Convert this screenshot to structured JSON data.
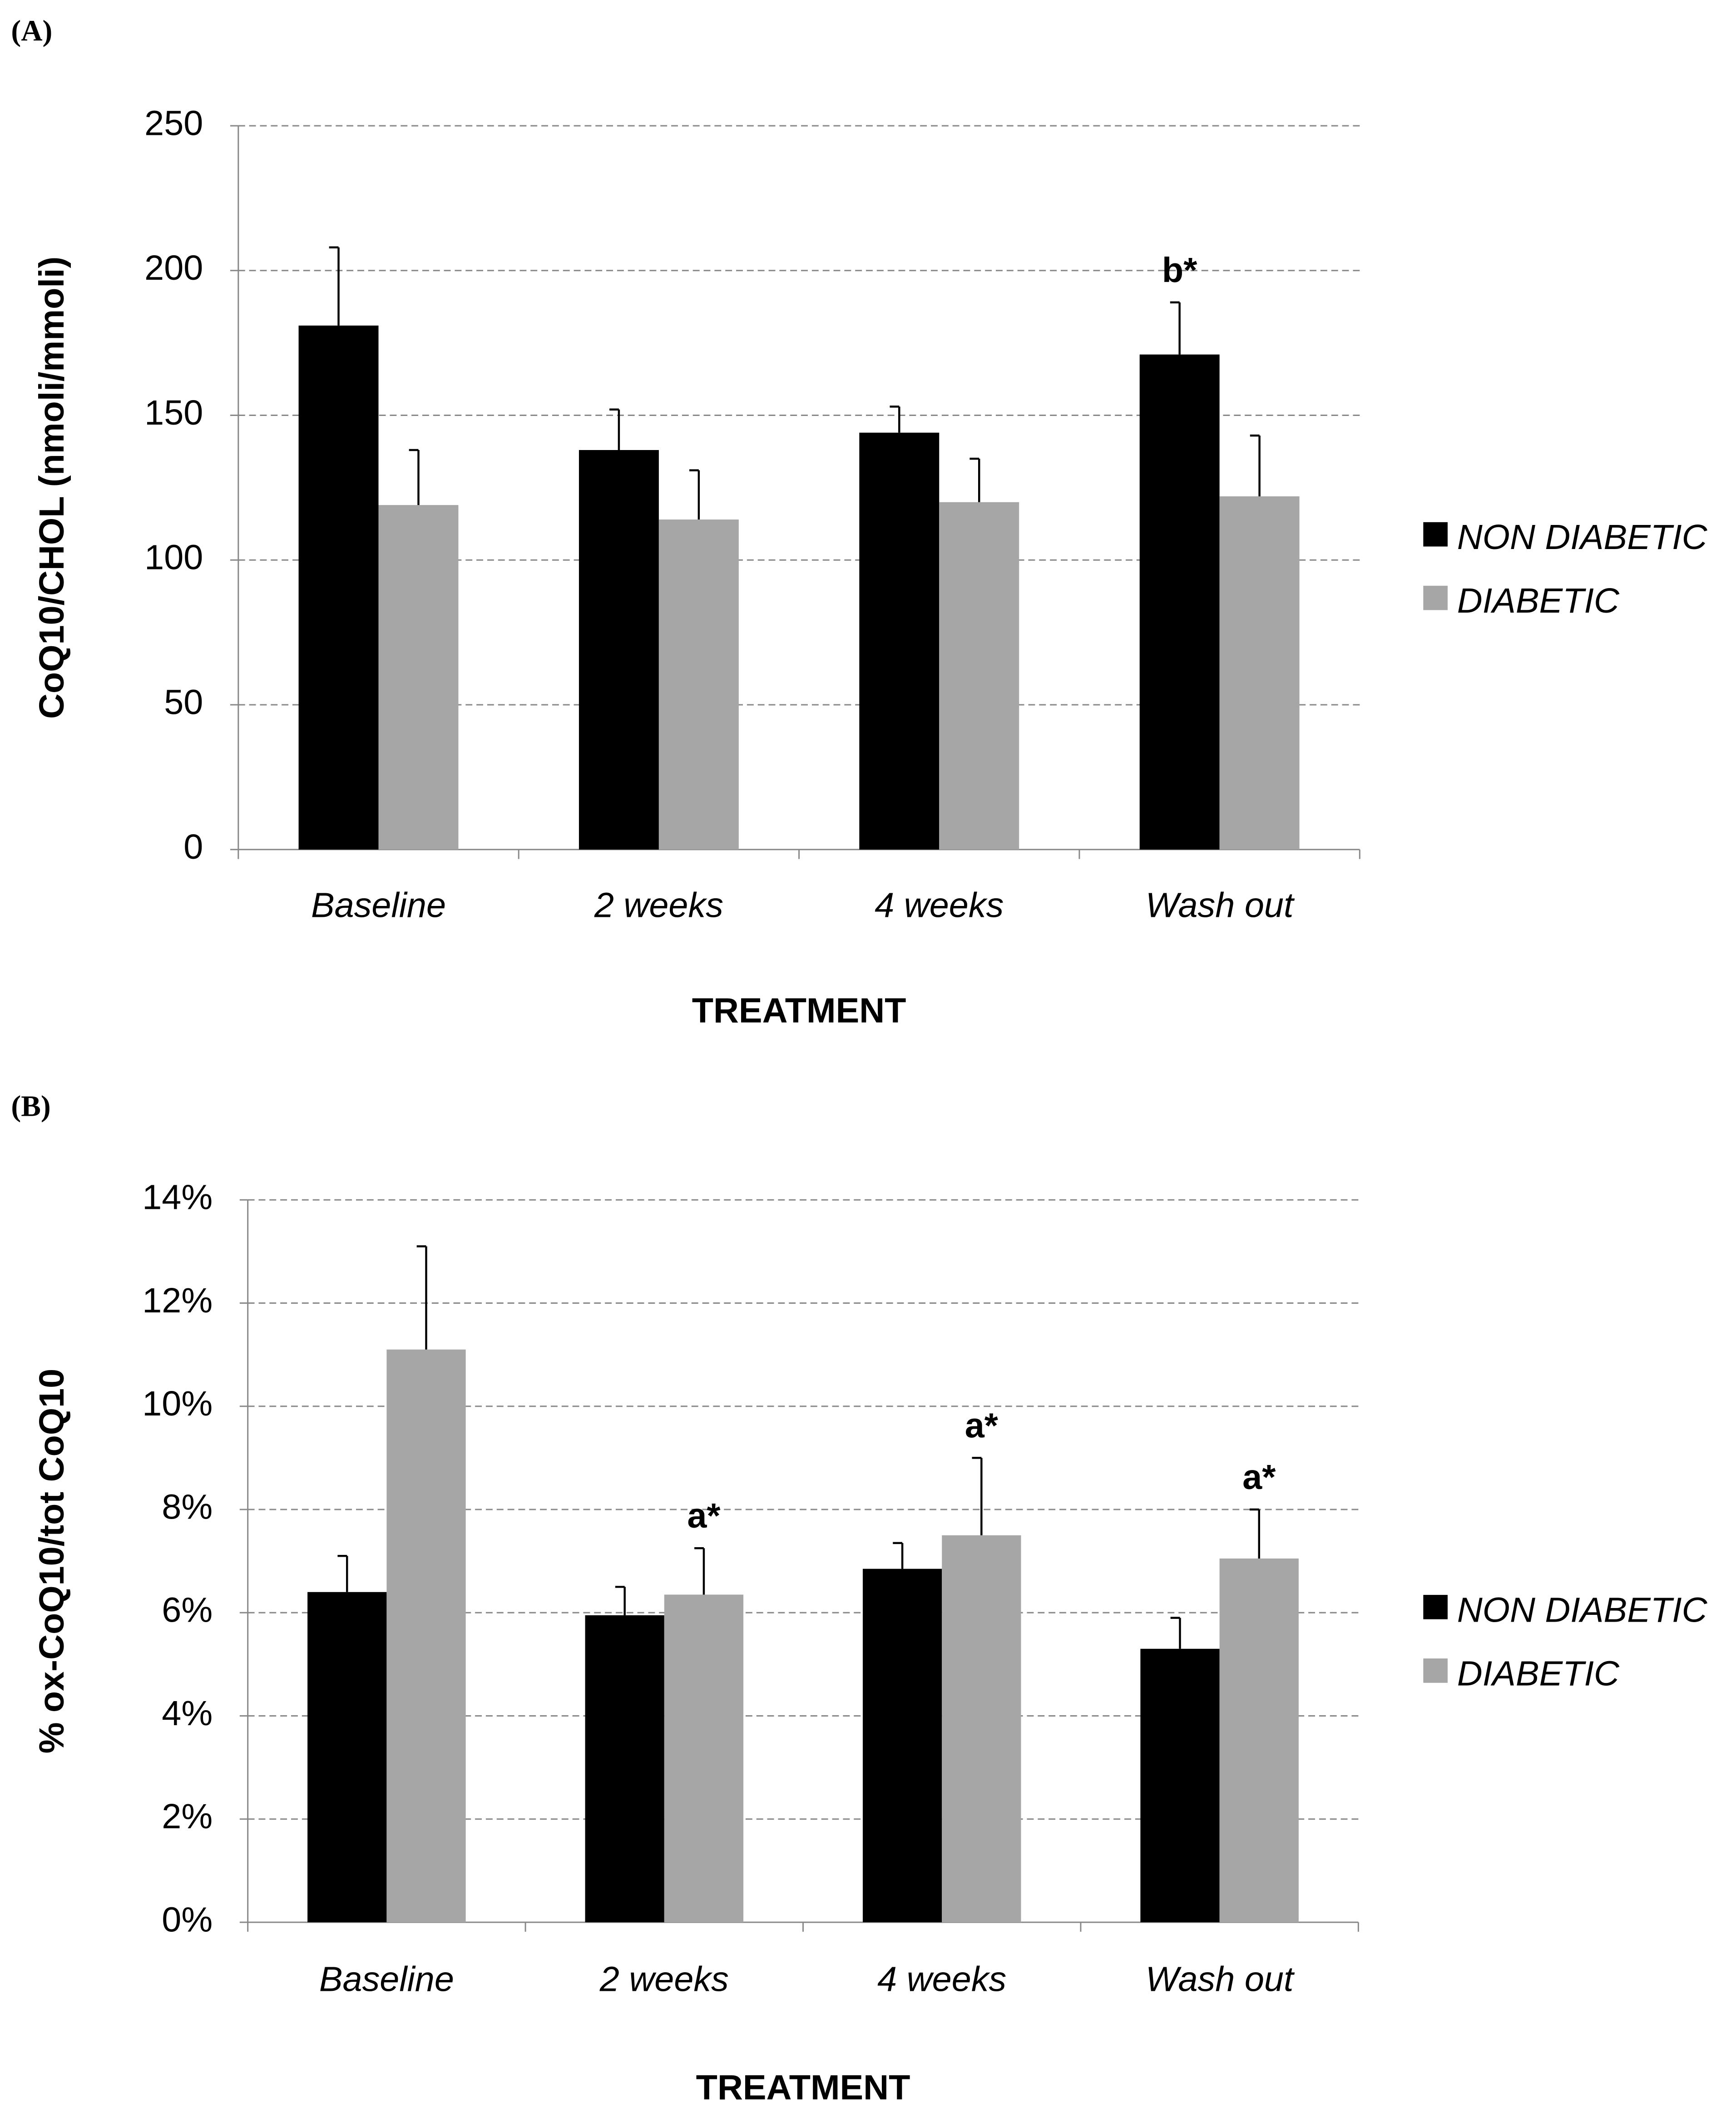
{
  "chart_data": [
    {
      "type": "bar",
      "panel_label": "(A)",
      "y_label": "CoQ10/CHOL (nmoli/mmoli)",
      "x_label": "TREATMENT",
      "categories": [
        "Baseline",
        "2 weeks",
        "4 weeks",
        "Wash out"
      ],
      "series": [
        {
          "name": "NON DIABETIC",
          "color": "#000000",
          "values": [
            181,
            138,
            144,
            171
          ],
          "errors": [
            27,
            14,
            9,
            18
          ],
          "annotations": [
            null,
            null,
            null,
            "b*"
          ]
        },
        {
          "name": "DIABETIC",
          "color": "#a6a6a6",
          "values": [
            119,
            114,
            120,
            122
          ],
          "errors": [
            19,
            17,
            15,
            21
          ],
          "annotations": [
            null,
            null,
            null,
            null
          ]
        }
      ],
      "ylim": [
        0,
        250
      ],
      "yticks": [
        0,
        50,
        100,
        150,
        200,
        250
      ],
      "grid": true,
      "legend": "right"
    },
    {
      "type": "bar",
      "panel_label": "(B)",
      "y_label": "% ox-CoQ10/tot CoQ10",
      "x_label": "TREATMENT",
      "categories": [
        "Baseline",
        "2 weeks",
        "4 weeks",
        "Wash out"
      ],
      "series": [
        {
          "name": "NON DIABETIC",
          "color": "#000000",
          "values": [
            6.4,
            5.95,
            6.85,
            5.3
          ],
          "errors": [
            0.7,
            0.55,
            0.5,
            0.6
          ],
          "annotations": [
            null,
            null,
            null,
            null
          ]
        },
        {
          "name": "DIABETIC",
          "color": "#a6a6a6",
          "values": [
            11.1,
            6.35,
            7.5,
            7.05
          ],
          "errors": [
            2.0,
            0.9,
            1.5,
            0.95
          ],
          "annotations": [
            null,
            "a*",
            "a*",
            "a*"
          ]
        }
      ],
      "ylim": [
        0,
        14
      ],
      "yticks": [
        {
          "value": 0,
          "label": "0%"
        },
        {
          "value": 2,
          "label": "2%"
        },
        {
          "value": 4,
          "label": "4%"
        },
        {
          "value": 6,
          "label": "6%"
        },
        {
          "value": 8,
          "label": "8%"
        },
        {
          "value": 10,
          "label": "10%"
        },
        {
          "value": 12,
          "label": "12%"
        },
        {
          "value": 14,
          "label": "14%"
        }
      ],
      "grid": true,
      "legend": "right"
    }
  ]
}
